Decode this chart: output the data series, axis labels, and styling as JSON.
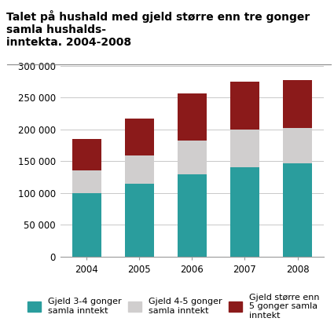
{
  "title": "Talet på hushald med gjeld større enn tre gonger samla hushalds-\ninntekta. 2004-2008",
  "years": [
    2004,
    2005,
    2006,
    2007,
    2008
  ],
  "series": {
    "gjeld_3_4": [
      100000,
      115000,
      130000,
      141000,
      147000
    ],
    "gjeld_4_5": [
      35000,
      44000,
      52000,
      59000,
      55000
    ],
    "gjeld_5plus": [
      50000,
      58000,
      75000,
      75000,
      75000
    ]
  },
  "colors": {
    "gjeld_3_4": "#2a9d9d",
    "gjeld_4_5": "#d0cece",
    "gjeld_5plus": "#8b1a1a"
  },
  "legend_labels": [
    "Gjeld 3-4 gonger\nsamla inntekt",
    "Gjeld 4-5 gonger\nsamla inntekt",
    "Gjeld større enn\n5 gonger samla\ninntekt"
  ],
  "ylim": [
    0,
    300000
  ],
  "yticks": [
    0,
    50000,
    100000,
    150000,
    200000,
    250000,
    300000
  ],
  "ytick_labels": [
    "0",
    "50 000",
    "100 000",
    "150 000",
    "200 000",
    "250 000",
    "300 000"
  ],
  "bar_width": 0.55,
  "bg_color": "#ffffff",
  "grid_color": "#c8c8c8",
  "title_fontsize": 10,
  "tick_fontsize": 8.5,
  "legend_fontsize": 8
}
